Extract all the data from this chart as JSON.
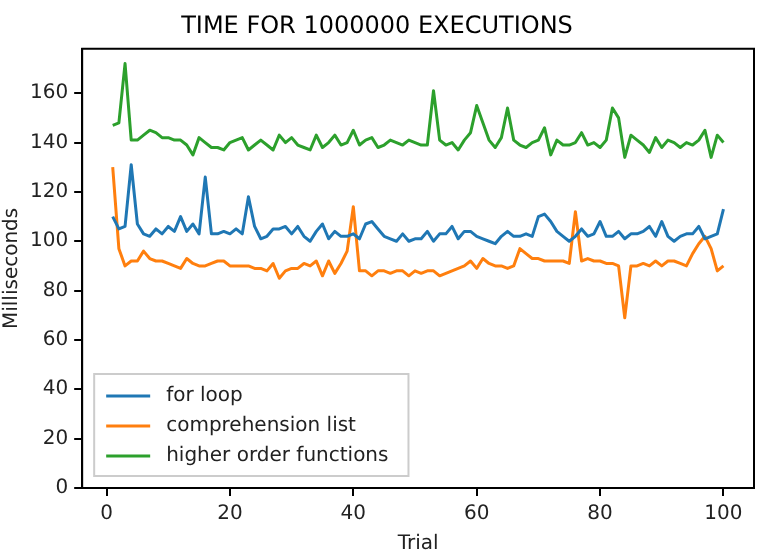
{
  "chart_data": {
    "type": "line",
    "title": "TIME FOR 1000000 EXECUTIONS",
    "xlabel": "Trial",
    "ylabel": "Milliseconds",
    "x": [
      1,
      2,
      3,
      4,
      5,
      6,
      7,
      8,
      9,
      10,
      11,
      12,
      13,
      14,
      15,
      16,
      17,
      18,
      19,
      20,
      21,
      22,
      23,
      24,
      25,
      26,
      27,
      28,
      29,
      30,
      31,
      32,
      33,
      34,
      35,
      36,
      37,
      38,
      39,
      40,
      41,
      42,
      43,
      44,
      45,
      46,
      47,
      48,
      49,
      50,
      51,
      52,
      53,
      54,
      55,
      56,
      57,
      58,
      59,
      60,
      61,
      62,
      63,
      64,
      65,
      66,
      67,
      68,
      69,
      70,
      71,
      72,
      73,
      74,
      75,
      76,
      77,
      78,
      79,
      80,
      81,
      82,
      83,
      84,
      85,
      86,
      87,
      88,
      89,
      90,
      91,
      92,
      93,
      94,
      95,
      96,
      97,
      98,
      99,
      100
    ],
    "series": [
      {
        "name": "for loop",
        "color": "#1f77b4",
        "values": [
          110,
          105,
          106,
          131,
          107,
          103,
          102,
          105,
          103,
          106,
          104,
          110,
          104,
          107,
          103,
          126,
          103,
          103,
          104,
          103,
          105,
          103,
          118,
          106,
          101,
          102,
          105,
          105,
          106,
          103,
          106,
          102,
          100,
          104,
          107,
          101,
          104,
          102,
          102,
          103,
          101,
          107,
          108,
          105,
          102,
          101,
          100,
          103,
          100,
          101,
          101,
          104,
          100,
          103,
          103,
          106,
          101,
          104,
          104,
          102,
          101,
          100,
          99,
          102,
          104,
          102,
          102,
          103,
          102,
          110,
          111,
          108,
          104,
          102,
          100,
          102,
          105,
          102,
          103,
          108,
          102,
          102,
          104,
          101,
          103,
          103,
          104,
          106,
          102,
          108,
          102,
          100,
          102,
          103,
          103,
          106,
          101,
          102,
          103,
          113
        ]
      },
      {
        "name": "comprehension list",
        "color": "#ff7f0e",
        "values": [
          130,
          97,
          90,
          92,
          92,
          96,
          93,
          92,
          92,
          91,
          90,
          89,
          93,
          91,
          90,
          90,
          91,
          92,
          92,
          90,
          90,
          90,
          90,
          89,
          89,
          88,
          91,
          85,
          88,
          89,
          89,
          91,
          90,
          92,
          86,
          92,
          87,
          91,
          96,
          114,
          88,
          88,
          86,
          88,
          88,
          87,
          88,
          88,
          86,
          88,
          87,
          88,
          88,
          86,
          87,
          88,
          89,
          90,
          92,
          89,
          93,
          91,
          90,
          90,
          89,
          90,
          97,
          95,
          93,
          93,
          92,
          92,
          92,
          92,
          91,
          112,
          92,
          93,
          92,
          92,
          91,
          91,
          90,
          69,
          90,
          90,
          91,
          90,
          92,
          90,
          92,
          92,
          91,
          90,
          95,
          99,
          102,
          97,
          88,
          90
        ]
      },
      {
        "name": "higher order functions",
        "color": "#2ca02c",
        "values": [
          147,
          148,
          172,
          141,
          141,
          143,
          145,
          144,
          142,
          142,
          141,
          141,
          139,
          135,
          142,
          140,
          138,
          138,
          137,
          140,
          141,
          142,
          137,
          139,
          141,
          139,
          137,
          143,
          140,
          142,
          139,
          138,
          137,
          143,
          138,
          140,
          143,
          139,
          140,
          145,
          139,
          141,
          142,
          138,
          139,
          141,
          140,
          139,
          141,
          140,
          139,
          139,
          161,
          141,
          139,
          140,
          137,
          141,
          144,
          155,
          148,
          141,
          138,
          142,
          154,
          141,
          139,
          138,
          140,
          141,
          146,
          135,
          141,
          139,
          139,
          140,
          144,
          139,
          140,
          138,
          141,
          154,
          150,
          134,
          143,
          141,
          139,
          136,
          142,
          138,
          141,
          140,
          138,
          140,
          139,
          141,
          145,
          134,
          143,
          140
        ]
      }
    ],
    "xlim": [
      -3.95,
      104.95
    ],
    "xticks": [
      0,
      20,
      40,
      60,
      80,
      100
    ],
    "ylim": [
      0,
      178
    ],
    "yticks": [
      0,
      20,
      40,
      60,
      80,
      100,
      120,
      140,
      160
    ],
    "grid": false,
    "legend": "bottom left",
    "marker": "none",
    "line_style": "solid"
  }
}
